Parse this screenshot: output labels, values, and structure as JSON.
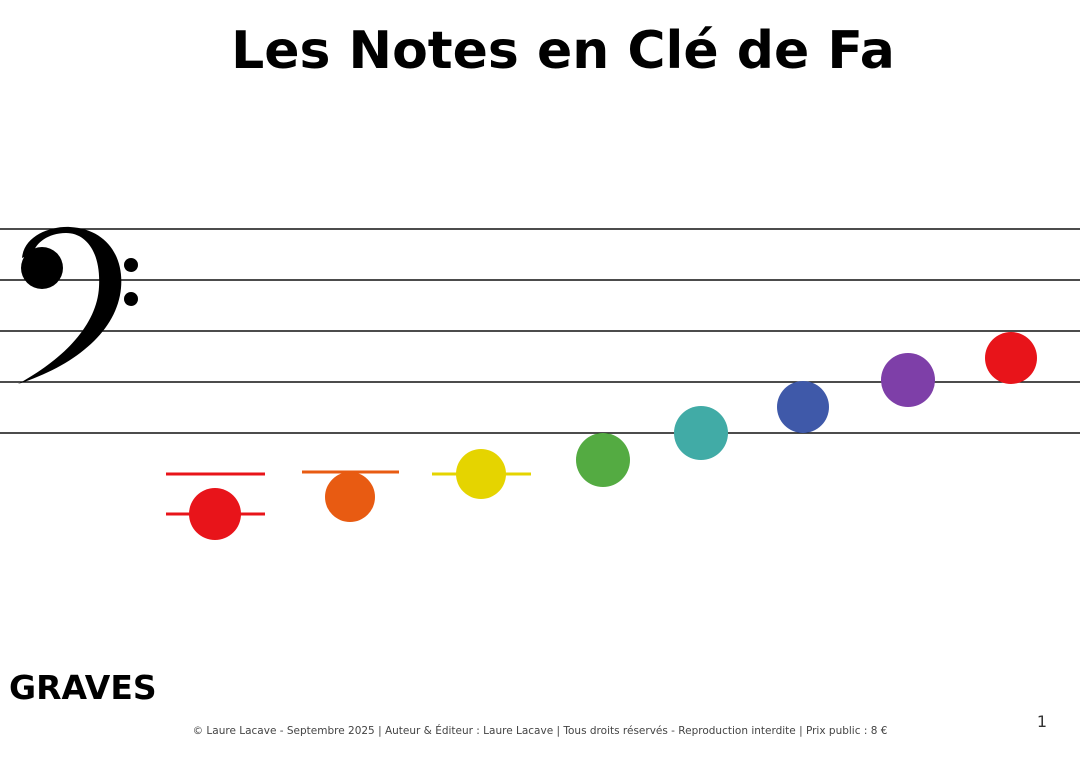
{
  "header": {
    "title": "Les Notes en Clé de Fa"
  },
  "label": "GRAVES",
  "footer": {
    "copyright": "© Laure Lacave - Septembre 2025 | Auteur & Éditeur : Laure Lacave | Tous droits réservés - Reproduction interdite | Prix public : 8 €",
    "page_number": "1"
  }
}
